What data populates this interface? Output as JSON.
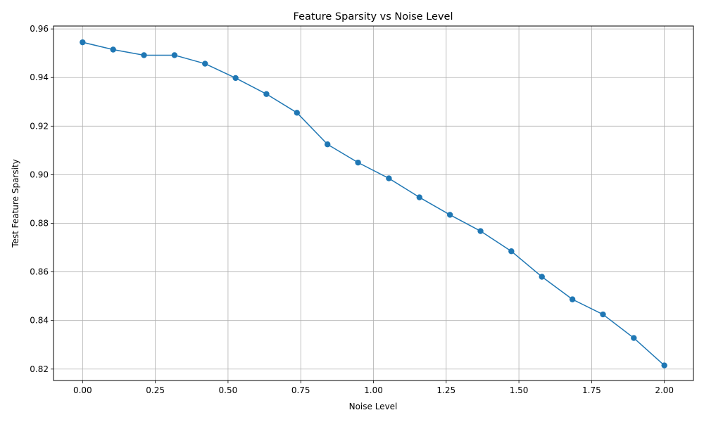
{
  "chart_data": {
    "type": "line",
    "title": "Feature Sparsity vs Noise Level",
    "xlabel": "Noise Level",
    "ylabel": "Test Feature Sparsity",
    "xlim": [
      -0.1,
      2.1
    ],
    "ylim": [
      0.8153,
      0.9612
    ],
    "xticks": [
      0.0,
      0.25,
      0.5,
      0.75,
      1.0,
      1.25,
      1.5,
      1.75,
      2.0
    ],
    "xtick_labels": [
      "0.00",
      "0.25",
      "0.50",
      "0.75",
      "1.00",
      "1.25",
      "1.50",
      "1.75",
      "2.00"
    ],
    "yticks": [
      0.82,
      0.84,
      0.86,
      0.88,
      0.9,
      0.92,
      0.94,
      0.96
    ],
    "ytick_labels": [
      "0.82",
      "0.84",
      "0.86",
      "0.88",
      "0.90",
      "0.92",
      "0.94",
      "0.96"
    ],
    "grid": true,
    "line_color": "#1f77b4",
    "x": [
      0.0,
      0.105,
      0.211,
      0.316,
      0.421,
      0.526,
      0.632,
      0.737,
      0.842,
      0.947,
      1.053,
      1.158,
      1.263,
      1.368,
      1.474,
      1.579,
      1.684,
      1.789,
      1.895,
      2.0
    ],
    "series": [
      {
        "values": [
          0.9545,
          0.9515,
          0.9492,
          0.9492,
          0.9457,
          0.9398,
          0.9332,
          0.9255,
          0.9125,
          0.905,
          0.8985,
          0.8907,
          0.8835,
          0.8768,
          0.8685,
          0.858,
          0.8487,
          0.8425,
          0.8328,
          0.8215
        ]
      }
    ]
  }
}
